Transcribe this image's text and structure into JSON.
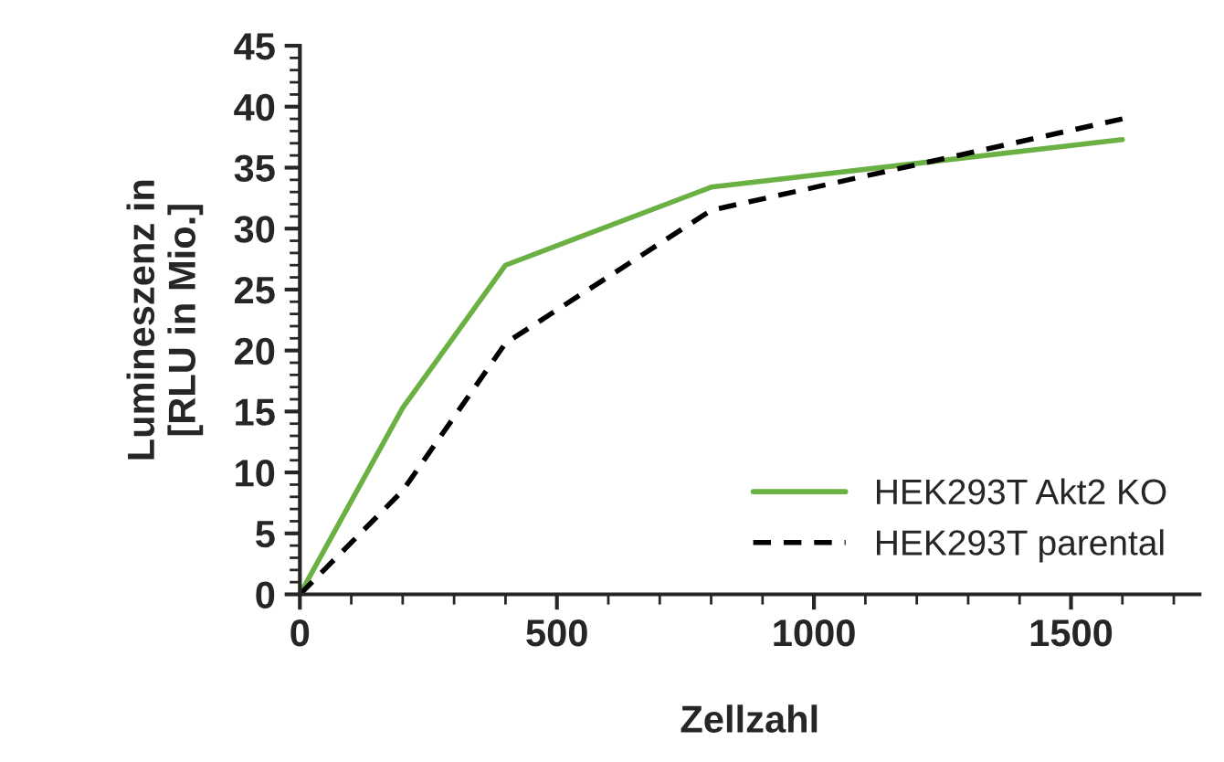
{
  "chart_data": {
    "type": "line",
    "xlabel": "Zellzahl",
    "ylabel": "Lumineszenz in\n[RLU in Mio.]",
    "series": [
      {
        "name": "HEK293T Akt2 KO",
        "color": "#6ab042",
        "line_style": "solid",
        "x": [
          0,
          200,
          400,
          800,
          1600
        ],
        "values": [
          0,
          15.3,
          27.0,
          33.4,
          37.3
        ]
      },
      {
        "name": "HEK293T parental",
        "color": "#000000",
        "line_style": "dashed",
        "x": [
          0,
          200,
          400,
          800,
          1600
        ],
        "values": [
          0,
          8.5,
          20.6,
          31.5,
          39.0
        ]
      }
    ],
    "xlim": [
      0,
      1750
    ],
    "xticks": [
      0,
      500,
      1000,
      1500
    ],
    "ylim": [
      0,
      45
    ],
    "yticks": [
      0,
      5,
      10,
      15,
      20,
      25,
      30,
      35,
      40,
      45
    ],
    "grid": false,
    "legend": "bottom right",
    "marker": "none"
  }
}
